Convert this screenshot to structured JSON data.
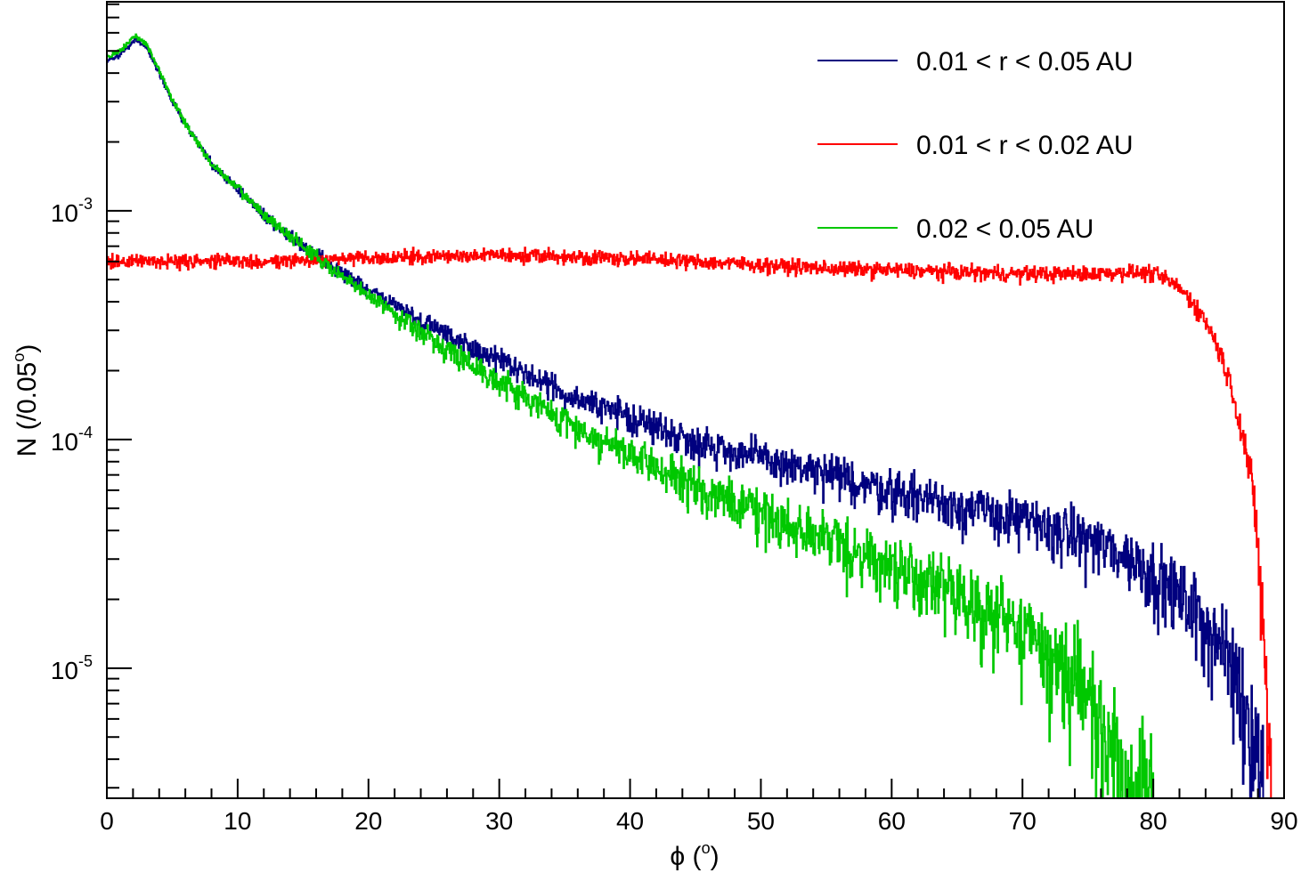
{
  "chart_data": {
    "type": "line",
    "title": "",
    "xlabel": "ϕ (",
    "xlabel_sup": "o",
    "xlabel_end": ")",
    "ylabel": "N (/0.05",
    "ylabel_sup": "o",
    "ylabel_end": ")",
    "xlim": [
      0,
      90
    ],
    "ylim": [
      2.7e-06,
      0.0082
    ],
    "yscale": "log",
    "grid": false,
    "legend_position": "top-right",
    "x_ticks": [
      0,
      10,
      20,
      30,
      40,
      50,
      60,
      70,
      80,
      90
    ],
    "x_tick_labels": [
      "0",
      "10",
      "20",
      "30",
      "40",
      "50",
      "60",
      "70",
      "80",
      "90"
    ],
    "y_ticks": [
      {
        "value": 0.001,
        "base": "10",
        "exp": "-3"
      },
      {
        "value": 0.0001,
        "base": "10",
        "exp": "-4"
      },
      {
        "value": 1e-05,
        "base": "10",
        "exp": "-5"
      }
    ],
    "series": [
      {
        "name": "0.01 < r < 0.05 AU",
        "color": "#00007f",
        "x": [
          0,
          1,
          2.2,
          3,
          4,
          5,
          6,
          8,
          10,
          12,
          15,
          18,
          20,
          25,
          30,
          35,
          40,
          45,
          50,
          55,
          60,
          65,
          70,
          75,
          78,
          80,
          82,
          84,
          85,
          86,
          87,
          88,
          88.5
        ],
        "y": [
          0.0045,
          0.0048,
          0.0056,
          0.0052,
          0.004,
          0.003,
          0.0024,
          0.0016,
          0.00125,
          0.00096,
          0.0007,
          0.00053,
          0.00045,
          0.00031,
          0.00022,
          0.00016,
          0.000125,
          9.8e-05,
          8.3e-05,
          7e-05,
          6e-05,
          5.2e-05,
          4.4e-05,
          3.7e-05,
          3.1e-05,
          2.6e-05,
          2.1e-05,
          1.6e-05,
          1.3e-05,
          1.05e-05,
          7.5e-06,
          4.5e-06,
          2.8e-06
        ]
      },
      {
        "name": "0.01 < r < 0.02 AU",
        "color": "#ff0000",
        "x": [
          0,
          5,
          10,
          15,
          20,
          25,
          30,
          35,
          40,
          45,
          50,
          55,
          60,
          65,
          70,
          75,
          78,
          80,
          81,
          82,
          83,
          84,
          85,
          86,
          87,
          87.5,
          88,
          88.5,
          88.8,
          89
        ],
        "y": [
          0.0006,
          0.0006,
          0.0006,
          0.00061,
          0.00062,
          0.00063,
          0.00064,
          0.00063,
          0.00062,
          0.0006,
          0.00058,
          0.00056,
          0.00055,
          0.00054,
          0.00053,
          0.00053,
          0.00054,
          0.00053,
          0.0005,
          0.00046,
          0.0004,
          0.00033,
          0.00025,
          0.00017,
          9.5e-05,
          6.5e-05,
          3.5e-05,
          1.2e-05,
          5e-06,
          2.8e-06
        ]
      },
      {
        "name": "0.02 < 0.05 AU",
        "color": "#00c800",
        "x": [
          0,
          1,
          2.2,
          3,
          4,
          5,
          6,
          8,
          10,
          12,
          15,
          18,
          20,
          25,
          30,
          35,
          40,
          45,
          50,
          55,
          60,
          65,
          70,
          72,
          74,
          75,
          76,
          77,
          77.5,
          78,
          80
        ],
        "y": [
          0.0047,
          0.005,
          0.0058,
          0.0054,
          0.0041,
          0.0031,
          0.0024,
          0.0016,
          0.00125,
          0.00096,
          0.0007,
          0.00051,
          0.00043,
          0.00027,
          0.00018,
          0.00012,
          8.5e-05,
          6.2e-05,
          4.8e-05,
          3.7e-05,
          2.8e-05,
          2.1e-05,
          1.5e-05,
          1.2e-05,
          9.5e-06,
          7.8e-06,
          6.2e-06,
          4.5e-06,
          3.5e-06,
          2.8e-06,
          2.8e-06
        ]
      }
    ]
  }
}
